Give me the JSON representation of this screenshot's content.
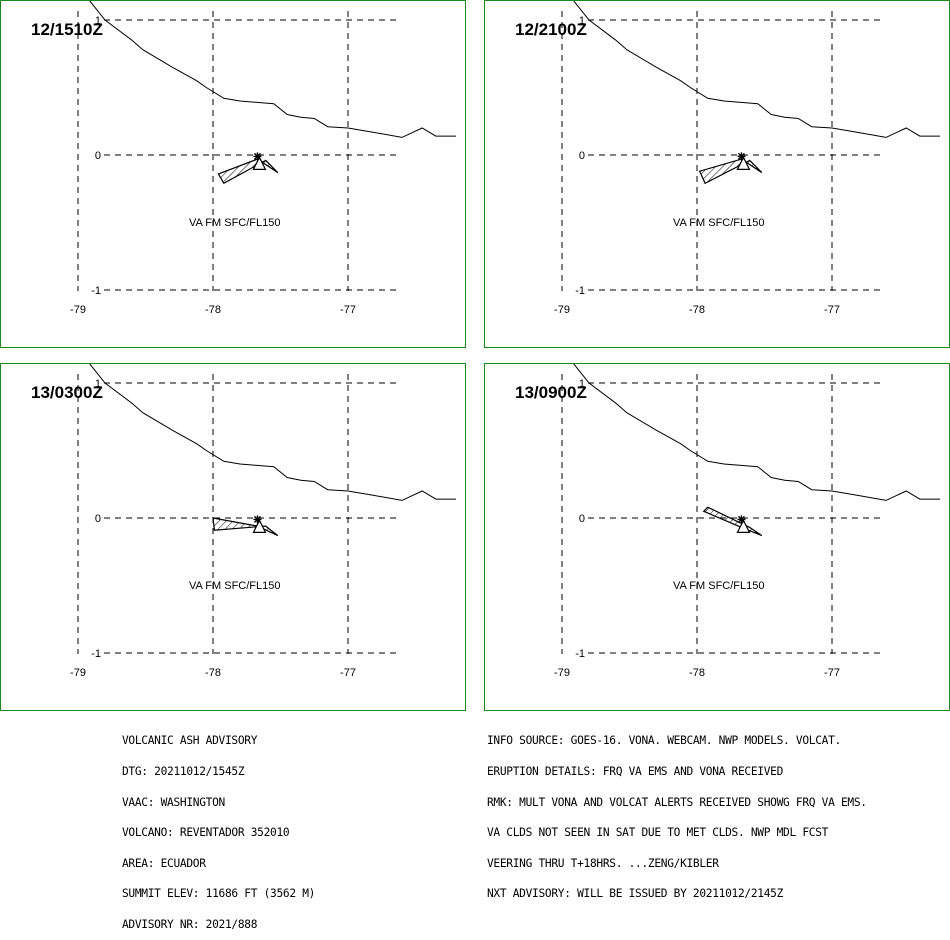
{
  "panels": [
    {
      "time": "12/1510Z",
      "label": "VA FM SFC/FL150",
      "ash_polygon": [
        [
          -77.61,
          -0.04
        ],
        [
          -77.92,
          -0.21
        ],
        [
          -77.96,
          -0.14
        ],
        [
          -77.67,
          -0.03
        ],
        [
          -77.52,
          -0.13
        ],
        [
          -77.61,
          -0.04
        ]
      ]
    },
    {
      "time": "12/2100Z",
      "label": "VA FM SFC/FL150",
      "ash_polygon": [
        [
          -77.61,
          -0.04
        ],
        [
          -77.94,
          -0.21
        ],
        [
          -77.98,
          -0.12
        ],
        [
          -77.67,
          -0.03
        ],
        [
          -77.52,
          -0.13
        ],
        [
          -77.61,
          -0.04
        ]
      ]
    },
    {
      "time": "13/0300Z",
      "label": "VA FM SFC/FL150",
      "ash_polygon": [
        [
          -77.61,
          -0.06
        ],
        [
          -77.99,
          -0.09
        ],
        [
          -78.0,
          0.0
        ],
        [
          -77.67,
          -0.06
        ],
        [
          -77.52,
          -0.13
        ],
        [
          -77.61,
          -0.06
        ]
      ]
    },
    {
      "time": "13/0900Z",
      "label": "VA FM SFC/FL150",
      "ash_polygon": [
        [
          -77.61,
          -0.07
        ],
        [
          -77.92,
          0.08
        ],
        [
          -77.95,
          0.05
        ],
        [
          -77.67,
          -0.07
        ],
        [
          -77.52,
          -0.13
        ],
        [
          -77.61,
          -0.07
        ]
      ]
    }
  ],
  "axes": {
    "lon_ticks": [
      "-79",
      "-78",
      "-77"
    ],
    "lat_ticks": [
      "1",
      "0",
      "-1"
    ],
    "lon_values": [
      -79,
      -78,
      -77
    ],
    "lat_values": [
      1,
      0,
      -1
    ]
  },
  "volcano": {
    "lon": -77.656,
    "lat": -0.077
  },
  "coastline": [
    [
      -78.92,
      1.15
    ],
    [
      -78.8,
      1.0
    ],
    [
      -78.6,
      0.85
    ],
    [
      -78.52,
      0.78
    ],
    [
      -78.3,
      0.65
    ],
    [
      -78.12,
      0.55
    ],
    [
      -78.05,
      0.5
    ],
    [
      -77.92,
      0.42
    ],
    [
      -77.8,
      0.4
    ],
    [
      -77.55,
      0.38
    ],
    [
      -77.45,
      0.3
    ],
    [
      -77.35,
      0.28
    ],
    [
      -77.25,
      0.27
    ],
    [
      -77.15,
      0.21
    ],
    [
      -77.0,
      0.2
    ],
    [
      -76.82,
      0.17
    ],
    [
      -76.6,
      0.13
    ],
    [
      -76.45,
      0.2
    ],
    [
      -76.35,
      0.14
    ],
    [
      -76.2,
      0.14
    ]
  ],
  "advisory_left": [
    "VOLCANIC ASH ADVISORY",
    "DTG: 20211012/1545Z",
    "VAAC: WASHINGTON",
    "VOLCANO: REVENTADOR 352010",
    "AREA: ECUADOR",
    "SUMMIT ELEV: 11686 FT (3562 M)",
    "ADVISORY NR: 2021/888"
  ],
  "advisory_right": [
    "INFO SOURCE: GOES-16. VONA. WEBCAM. NWP MODELS. VOLCAT.",
    "ERUPTION DETAILS: FRQ VA EMS AND VONA RECEIVED",
    "RMK: MULT VONA AND VOLCAT ALERTS RECEIVED SHOWG FRQ VA EMS.",
    "VA CLDS NOT SEEN IN SAT DUE TO MET CLDS. NWP MDL FCST",
    "VEERING THRU T+18HRS. ...ZENG/KIBLER",
    "NXT ADVISORY: WILL BE ISSUED BY 20211012/2145Z"
  ],
  "colors": {
    "panel_border": "#1a8a1a",
    "ash_hatch": "#000000",
    "grid": "#000000"
  }
}
